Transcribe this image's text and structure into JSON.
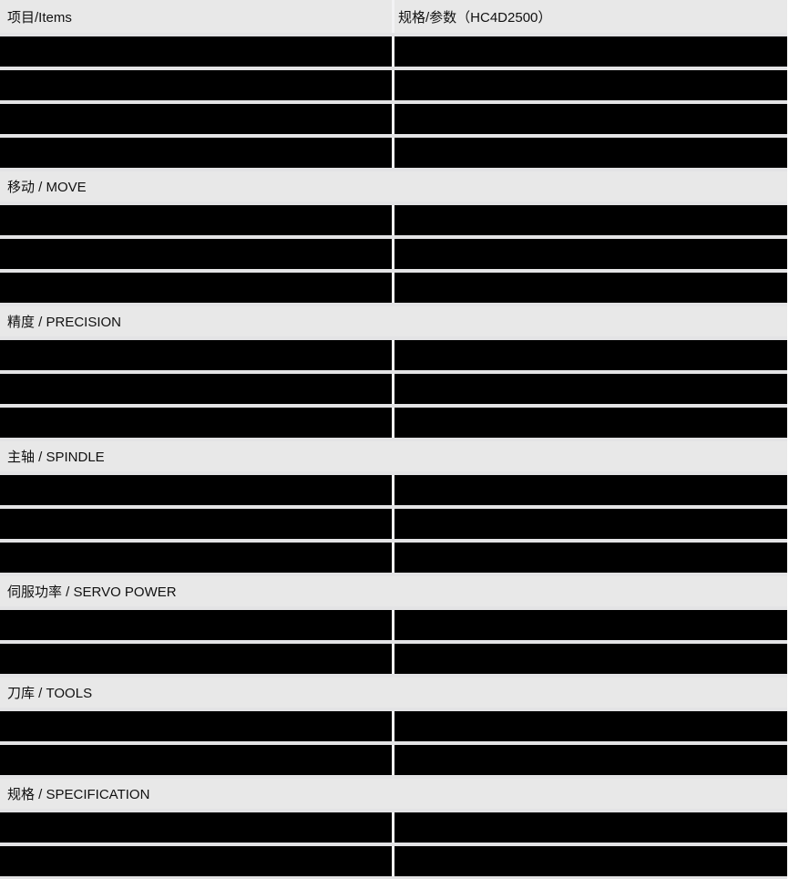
{
  "colors": {
    "page_bg": "#ffffff",
    "header_bg": "#e8e8e8",
    "section_bg": "#e8e8e8",
    "cell_bg": "#000000",
    "gap_bg": "#e3e3e5",
    "divider_bg": "#f2f2f4",
    "text_color": "#111111"
  },
  "table": {
    "column_headers": [
      "项目/Items",
      "规格/参数（HC4D2500）"
    ],
    "sections": [
      {
        "label": "",
        "redacted_rows": 4
      },
      {
        "label": "移动 / MOVE",
        "redacted_rows": 3
      },
      {
        "label": "精度 / PRECISION",
        "redacted_rows": 3
      },
      {
        "label": "主轴 / SPINDLE",
        "redacted_rows": 3
      },
      {
        "label": "伺服功率 / SERVO POWER",
        "redacted_rows": 2
      },
      {
        "label": "刀库 / TOOLS",
        "redacted_rows": 2
      },
      {
        "label": "规格 / SPECIFICATION",
        "redacted_rows": 2
      }
    ]
  }
}
